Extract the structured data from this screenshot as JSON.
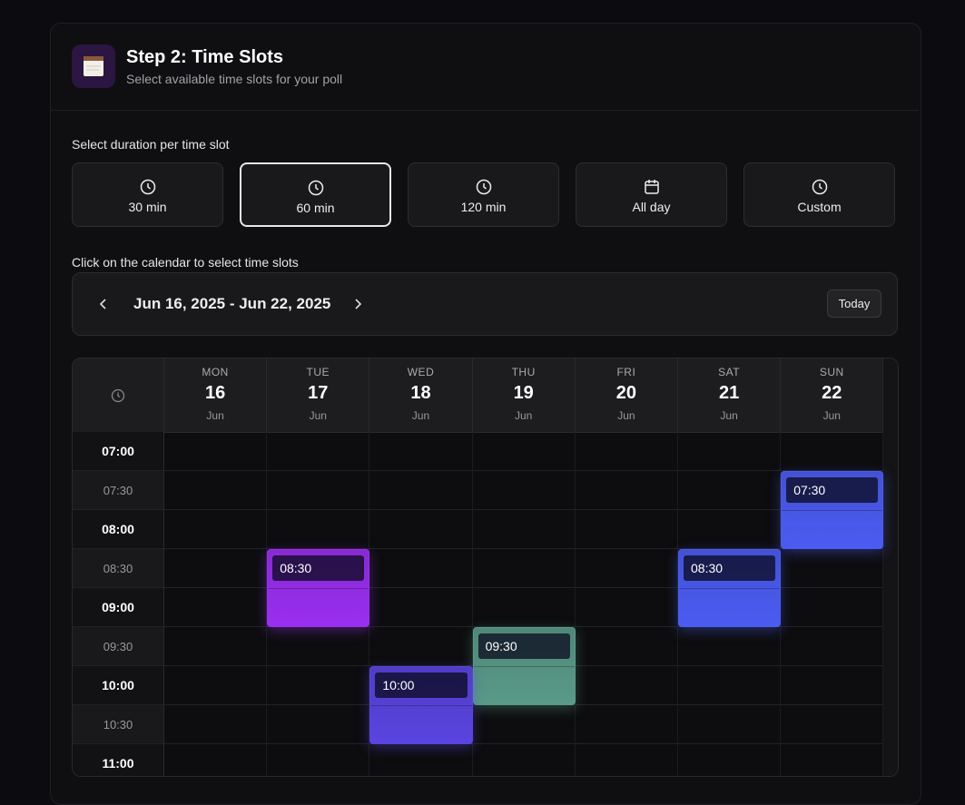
{
  "header": {
    "title": "Step 2: Time Slots",
    "subtitle": "Select available time slots for your poll"
  },
  "duration": {
    "label": "Select duration per time slot",
    "selected": 1,
    "options": [
      {
        "label": "30 min",
        "icon": "clock"
      },
      {
        "label": "60 min",
        "icon": "clock"
      },
      {
        "label": "120 min",
        "icon": "clock"
      },
      {
        "label": "All day",
        "icon": "calendar"
      },
      {
        "label": "Custom",
        "icon": "clock"
      }
    ]
  },
  "calendar": {
    "instruction": "Click on the calendar to select time slots",
    "range": "Jun 16, 2025 - Jun 22, 2025",
    "today": "Today",
    "days": [
      {
        "weekday": "MON",
        "date": 16,
        "month": "Jun"
      },
      {
        "weekday": "TUE",
        "date": 17,
        "month": "Jun"
      },
      {
        "weekday": "WED",
        "date": 18,
        "month": "Jun"
      },
      {
        "weekday": "THU",
        "date": 19,
        "month": "Jun"
      },
      {
        "weekday": "FRI",
        "date": 20,
        "month": "Jun"
      },
      {
        "weekday": "SAT",
        "date": 21,
        "month": "Jun"
      },
      {
        "weekday": "SUN",
        "date": 22,
        "month": "Jun"
      }
    ],
    "times": [
      "07:00",
      "07:30",
      "08:00",
      "08:30",
      "09:00",
      "09:30",
      "10:00",
      "10:30",
      "11:00"
    ],
    "events": [
      {
        "day": 6,
        "time": "07:30",
        "color": "#4b5cf2"
      },
      {
        "day": 1,
        "time": "08:30",
        "color": "#9a2ff0"
      },
      {
        "day": 5,
        "time": "08:30",
        "color": "#4b5cf2"
      },
      {
        "day": 3,
        "time": "09:30",
        "color": "#5a9a88"
      },
      {
        "day": 2,
        "time": "10:00",
        "color": "#5a44e0"
      }
    ]
  }
}
